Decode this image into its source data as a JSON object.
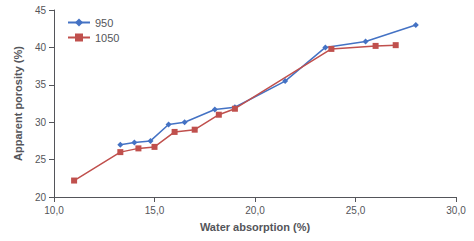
{
  "chart_data": {
    "type": "line",
    "xlabel": "Water absorption (%)",
    "ylabel": "Apparent porosity (%)",
    "series": [
      {
        "name": "950",
        "color": "#4472C4",
        "marker": "diamond",
        "x": [
          13.3,
          14.0,
          14.8,
          15.7,
          16.5,
          18.0,
          19.0,
          21.5,
          23.5,
          25.5,
          28.0
        ],
        "values": [
          27.0,
          27.3,
          27.5,
          29.7,
          30.0,
          31.7,
          32.0,
          35.5,
          40.0,
          40.8,
          43.0
        ]
      },
      {
        "name": "1050",
        "color": "#C0504D",
        "marker": "square",
        "x": [
          11.0,
          13.3,
          14.2,
          15.0,
          16.0,
          17.0,
          18.2,
          19.0,
          23.8,
          26.0,
          27.0
        ],
        "values": [
          22.2,
          26.0,
          26.5,
          26.7,
          28.7,
          29.0,
          31.0,
          31.8,
          39.8,
          40.2,
          40.3
        ]
      }
    ],
    "xlim": [
      10,
      30
    ],
    "ylim": [
      20,
      45
    ],
    "xticks": [
      {
        "value": 10,
        "label": "10,0"
      },
      {
        "value": 15,
        "label": "15,0"
      },
      {
        "value": 20,
        "label": "20,0"
      },
      {
        "value": 25,
        "label": "25,0"
      },
      {
        "value": 30,
        "label": "30,0"
      }
    ],
    "yticks": [
      20,
      25,
      30,
      35,
      40,
      45
    ],
    "legend": "upper left",
    "grid": false
  }
}
